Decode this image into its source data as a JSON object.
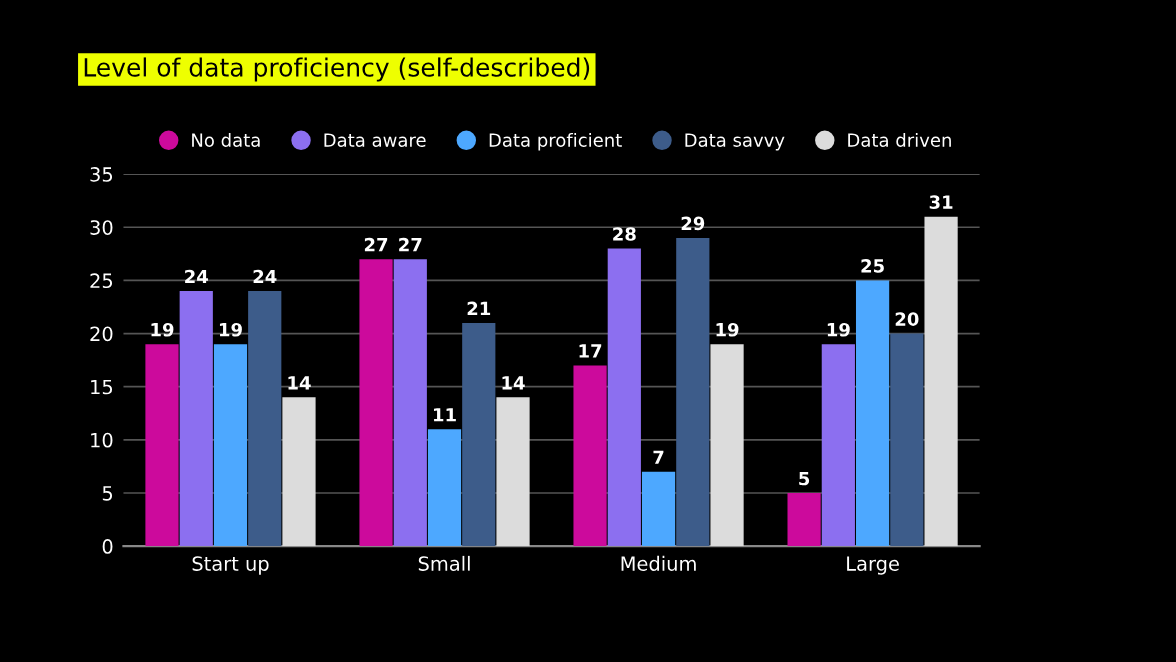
{
  "chart_data": {
    "type": "bar",
    "title": "Level of data proficiency (self-described)",
    "categories": [
      "Start up",
      "Small",
      "Medium",
      "Large"
    ],
    "series": [
      {
        "name": "No data",
        "color": "#cc0a9c",
        "values": [
          19,
          27,
          17,
          5
        ]
      },
      {
        "name": "Data aware",
        "color": "#8c6ff0",
        "values": [
          24,
          27,
          28,
          19
        ]
      },
      {
        "name": "Data proficient",
        "color": "#4da8ff",
        "values": [
          19,
          11,
          7,
          25
        ]
      },
      {
        "name": "Data savvy",
        "color": "#3d5c8a",
        "values": [
          24,
          21,
          29,
          20
        ]
      },
      {
        "name": "Data driven",
        "color": "#dcdcdc",
        "values": [
          14,
          14,
          19,
          31
        ]
      }
    ],
    "ylim": [
      0,
      35
    ],
    "yticks": [
      0,
      5,
      10,
      15,
      20,
      25,
      30,
      35
    ],
    "grid": "y",
    "legend": "top",
    "data_labels": true
  }
}
